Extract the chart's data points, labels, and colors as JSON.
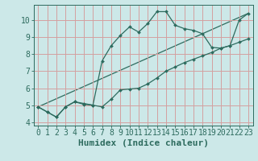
{
  "xlabel": "Humidex (Indice chaleur)",
  "bg_color": "#cce8e8",
  "grid_color": "#d4a0a0",
  "line_color": "#2d6b5e",
  "xlim": [
    -0.5,
    23.5
  ],
  "ylim": [
    3.8,
    10.9
  ],
  "xticks": [
    0,
    1,
    2,
    3,
    4,
    5,
    6,
    7,
    8,
    9,
    10,
    11,
    12,
    13,
    14,
    15,
    16,
    17,
    18,
    19,
    20,
    21,
    22,
    23
  ],
  "yticks": [
    4,
    5,
    6,
    7,
    8,
    9,
    10
  ],
  "line1_x": [
    0,
    1,
    2,
    3,
    4,
    5,
    6,
    7,
    8,
    9,
    10,
    11,
    12,
    13,
    14,
    15,
    16,
    17,
    18,
    19,
    20,
    21,
    22,
    23
  ],
  "line1_y": [
    4.9,
    4.6,
    4.3,
    4.9,
    5.2,
    5.1,
    5.0,
    4.9,
    5.35,
    5.9,
    5.95,
    6.0,
    6.25,
    6.6,
    7.0,
    7.25,
    7.5,
    7.7,
    7.9,
    8.1,
    8.35,
    8.5,
    8.7,
    8.9
  ],
  "line2_x": [
    0,
    1,
    2,
    3,
    4,
    5,
    6,
    7,
    8,
    9,
    10,
    11,
    12,
    13,
    14,
    15,
    16,
    17,
    18,
    19,
    20,
    21,
    22,
    23
  ],
  "line2_y": [
    4.9,
    4.6,
    4.3,
    4.9,
    5.2,
    5.05,
    5.0,
    7.6,
    8.5,
    9.1,
    9.6,
    9.3,
    9.8,
    10.5,
    10.5,
    9.7,
    9.5,
    9.4,
    9.2,
    8.4,
    8.35,
    8.5,
    10.0,
    10.4
  ],
  "line3_x": [
    0,
    23
  ],
  "line3_y": [
    4.9,
    10.4
  ],
  "xlabel_fontsize": 8,
  "tick_fontsize": 7
}
